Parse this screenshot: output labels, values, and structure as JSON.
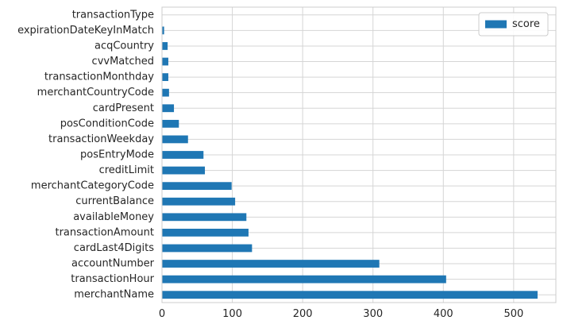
{
  "chart_data": {
    "type": "bar",
    "orientation": "horizontal",
    "categories": [
      "merchantName",
      "transactionHour",
      "accountNumber",
      "cardLast4Digits",
      "transactionAmount",
      "availableMoney",
      "currentBalance",
      "merchantCategoryCode",
      "creditLimit",
      "posEntryMode",
      "transactionWeekday",
      "posConditionCode",
      "cardPresent",
      "merchantCountryCode",
      "transactionMonthday",
      "cvvMatched",
      "acqCountry",
      "expirationDateKeyInMatch",
      "transactionType"
    ],
    "series": [
      {
        "name": "score",
        "values": [
          534,
          404,
          309,
          128,
          123,
          120,
          104,
          99,
          61,
          59,
          37,
          24,
          17,
          10,
          9,
          9,
          8,
          3,
          0
        ]
      }
    ],
    "title": "",
    "xlabel": "",
    "ylabel": "",
    "xlim": [
      0,
      560
    ],
    "xticks": [
      0,
      100,
      200,
      300,
      400,
      500
    ],
    "grid": true,
    "legend": "top-right",
    "colors": {
      "bar": "#1f77b4",
      "grid": "#d5d5d5",
      "spine": "#cccccc",
      "text": "#262626"
    }
  }
}
